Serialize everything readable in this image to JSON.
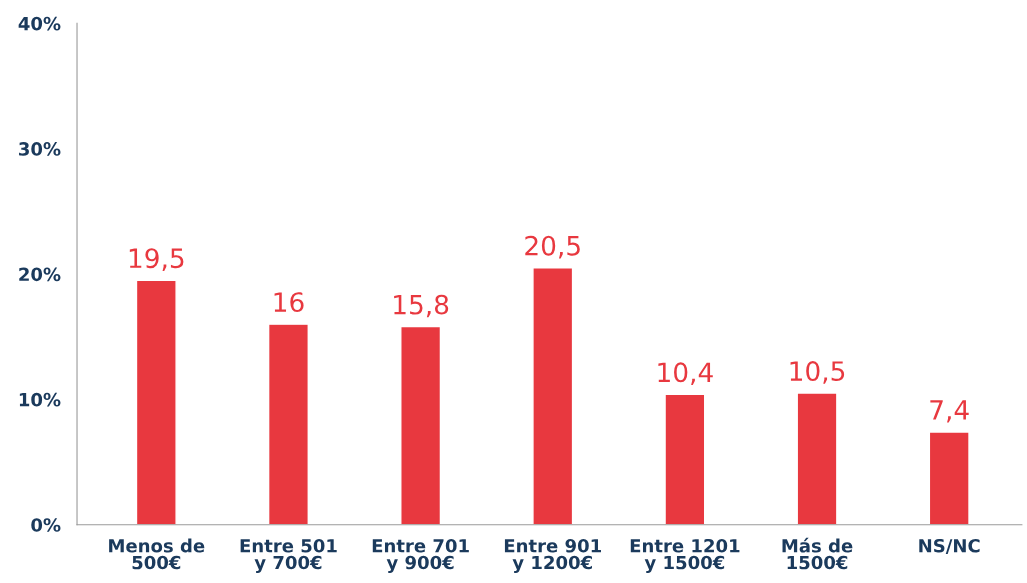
{
  "chart_data": {
    "type": "bar",
    "categories": [
      "Menos de\n500€",
      "Entre 501\ny 700€",
      "Entre 701\ny 900€",
      "Entre 901\ny 1200€",
      "Entre 1201\ny 1500€",
      "Más de\n1500€",
      "NS/NC"
    ],
    "values": [
      19.5,
      16,
      15.8,
      20.5,
      10.4,
      10.5,
      7.4
    ],
    "value_labels": [
      "19,5",
      "16",
      "15,8",
      "20,5",
      "10,4",
      "10,5",
      "7,4"
    ],
    "color": "#e8383f",
    "ylim": [
      0,
      40
    ],
    "yticks": [
      {
        "value": 0,
        "label": "0%"
      },
      {
        "value": 10,
        "label": "10%"
      },
      {
        "value": 20,
        "label": "20%"
      },
      {
        "value": 30,
        "label": "30%"
      },
      {
        "value": 40,
        "label": "40%"
      }
    ],
    "grid": false
  }
}
